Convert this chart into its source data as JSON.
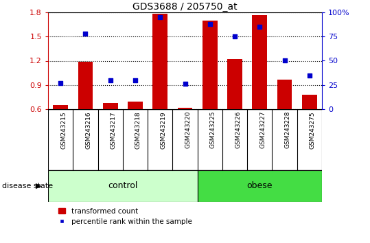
{
  "title": "GDS3688 / 205750_at",
  "samples": [
    "GSM243215",
    "GSM243216",
    "GSM243217",
    "GSM243218",
    "GSM243219",
    "GSM243220",
    "GSM243225",
    "GSM243226",
    "GSM243227",
    "GSM243228",
    "GSM243275"
  ],
  "transformed_count": [
    0.65,
    1.19,
    0.68,
    0.7,
    1.78,
    0.62,
    1.7,
    1.22,
    1.76,
    0.97,
    0.78
  ],
  "percentile_rank": [
    27,
    78,
    30,
    30,
    95,
    26,
    88,
    75,
    85,
    50,
    35
  ],
  "ylim_left": [
    0.6,
    1.8
  ],
  "ylim_right": [
    0,
    100
  ],
  "yticks_left": [
    0.6,
    0.9,
    1.2,
    1.5,
    1.8
  ],
  "yticks_right": [
    0,
    25,
    50,
    75,
    100
  ],
  "bar_color": "#cc0000",
  "dot_color": "#0000cc",
  "grid_color": "black",
  "n_control": 6,
  "n_obese": 5,
  "control_color": "#ccffcc",
  "obese_color": "#44dd44",
  "xticklabel_area_color": "#c8c8c8",
  "disease_state_label": "disease state",
  "control_label": "control",
  "obese_label": "obese",
  "legend_bar_label": "transformed count",
  "legend_dot_label": "percentile rank within the sample",
  "bar_width": 0.6
}
